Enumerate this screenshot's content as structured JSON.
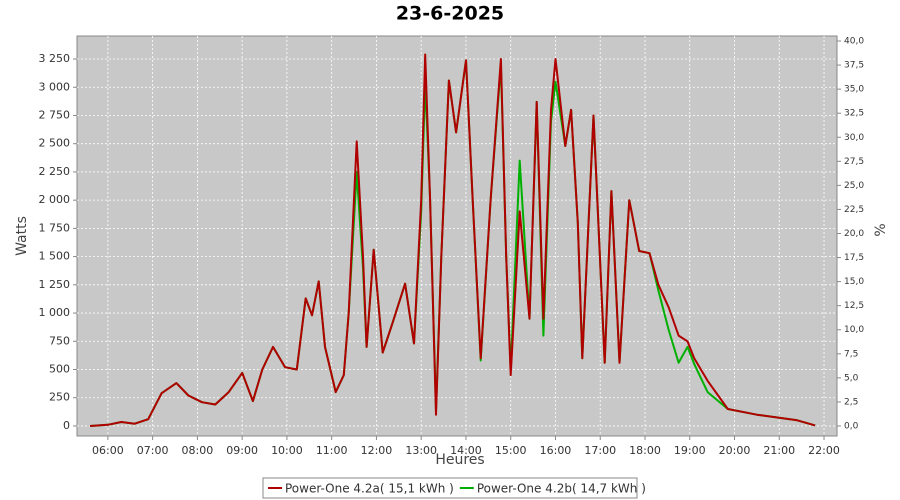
{
  "chart_data": {
    "type": "line",
    "title": "23-6-2025",
    "x_label": "Heures",
    "y_label": "Watts",
    "y2_label": "%",
    "x": [
      5.6,
      6.0,
      6.3,
      6.6,
      6.9,
      7.2,
      7.53,
      7.8,
      8.1,
      8.4,
      8.7,
      9.0,
      9.24,
      9.45,
      9.69,
      9.96,
      10.22,
      10.42,
      10.56,
      10.71,
      10.85,
      11.09,
      11.27,
      11.38,
      11.56,
      11.7,
      11.78,
      11.94,
      12.14,
      12.35,
      12.64,
      12.84,
      13.0,
      13.09,
      13.2,
      13.33,
      13.45,
      13.62,
      13.78,
      14.0,
      14.15,
      14.33,
      14.55,
      14.78,
      14.9,
      15.0,
      15.2,
      15.42,
      15.58,
      15.73,
      15.9,
      16.0,
      16.22,
      16.35,
      16.5,
      16.6,
      16.85,
      17.1,
      17.25,
      17.43,
      17.65,
      17.87,
      18.1,
      18.3,
      18.53,
      18.75,
      18.95,
      19.1,
      19.4,
      19.85,
      20.5,
      21.4,
      21.8
    ],
    "series": [
      {
        "name": "Power-One 4.2a( 15,1 kWh )",
        "color": "#b00000",
        "values": [
          0,
          10,
          35,
          20,
          60,
          290,
          380,
          270,
          210,
          190,
          300,
          470,
          220,
          500,
          700,
          520,
          500,
          1130,
          980,
          1280,
          700,
          300,
          450,
          1000,
          2520,
          1500,
          700,
          1560,
          650,
          900,
          1260,
          730,
          2000,
          3290,
          2000,
          100,
          1500,
          3060,
          2600,
          3240,
          2000,
          600,
          2000,
          3250,
          1500,
          450,
          1900,
          950,
          2870,
          950,
          2800,
          3250,
          2480,
          2800,
          1800,
          600,
          2750,
          560,
          2080,
          560,
          2000,
          1550,
          1530,
          1250,
          1050,
          800,
          750,
          600,
          400,
          150,
          100,
          50,
          5
        ]
      },
      {
        "name": "Power-One 4.2b( 14,7 kWh )",
        "color": "#00b000",
        "values": [
          0,
          10,
          35,
          20,
          60,
          290,
          380,
          270,
          210,
          190,
          300,
          470,
          220,
          500,
          700,
          520,
          500,
          1130,
          980,
          1280,
          700,
          300,
          450,
          1000,
          2250,
          1400,
          700,
          1560,
          650,
          900,
          1260,
          730,
          1900,
          3050,
          2000,
          150,
          1500,
          3060,
          2600,
          3240,
          2000,
          580,
          2000,
          3200,
          1500,
          500,
          2350,
          950,
          2870,
          800,
          2700,
          3050,
          2480,
          2800,
          1800,
          600,
          2750,
          560,
          2080,
          560,
          2000,
          1550,
          1530,
          1200,
          850,
          560,
          700,
          550,
          300,
          150,
          100,
          50,
          5
        ]
      }
    ],
    "xlim": [
      5.31,
      22.29
    ],
    "xticks": [
      {
        "value": 6,
        "label": "06:00"
      },
      {
        "value": 7,
        "label": "07:00"
      },
      {
        "value": 8,
        "label": "08:00"
      },
      {
        "value": 9,
        "label": "09:00"
      },
      {
        "value": 10,
        "label": "10:00"
      },
      {
        "value": 11,
        "label": "11:00"
      },
      {
        "value": 12,
        "label": "12:00"
      },
      {
        "value": 13,
        "label": "13:00"
      },
      {
        "value": 14,
        "label": "14:00"
      },
      {
        "value": 15,
        "label": "15:00"
      },
      {
        "value": 16,
        "label": "16:00"
      },
      {
        "value": 17,
        "label": "17:00"
      },
      {
        "value": 18,
        "label": "18:00"
      },
      {
        "value": 19,
        "label": "19:00"
      },
      {
        "value": 20,
        "label": "20:00"
      },
      {
        "value": 21,
        "label": "21:00"
      },
      {
        "value": 22,
        "label": "22:00"
      }
    ],
    "ylim": [
      -89,
      3454
    ],
    "yticks": [
      0,
      250,
      500,
      750,
      {
        "value": 1000,
        "label": "1 000"
      },
      {
        "value": 1250,
        "label": "1 250"
      },
      {
        "value": 1500,
        "label": "1 500"
      },
      {
        "value": 1750,
        "label": "1 750"
      },
      {
        "value": 2000,
        "label": "2 000"
      },
      {
        "value": 2250,
        "label": "2 250"
      },
      {
        "value": 2500,
        "label": "2 500"
      },
      {
        "value": 2750,
        "label": "2 750"
      },
      {
        "value": 3000,
        "label": "3 000"
      },
      {
        "value": 3250,
        "label": "3 250"
      }
    ],
    "y2lim": [
      -1.04,
      40.52
    ],
    "y2ticks": [
      {
        "value": 0,
        "label": "0,0"
      },
      {
        "value": 2.5,
        "label": "2,5"
      },
      {
        "value": 5,
        "label": "5,0"
      },
      {
        "value": 7.5,
        "label": "7,5"
      },
      {
        "value": 10,
        "label": "10,0"
      },
      {
        "value": 12.5,
        "label": "12,5"
      },
      {
        "value": 15,
        "label": "15,0"
      },
      {
        "value": 17.5,
        "label": "17,5"
      },
      {
        "value": 20,
        "label": "20,0"
      },
      {
        "value": 22.5,
        "label": "22,5"
      },
      {
        "value": 25,
        "label": "25,0"
      },
      {
        "value": 27.5,
        "label": "27,5"
      },
      {
        "value": 30,
        "label": "30,0"
      },
      {
        "value": 32.5,
        "label": "32,5"
      },
      {
        "value": 35,
        "label": "35,0"
      },
      {
        "value": 37.5,
        "label": "37,5"
      },
      {
        "value": 40,
        "label": "40,0"
      }
    ],
    "grid": true,
    "legend": "bottom"
  }
}
